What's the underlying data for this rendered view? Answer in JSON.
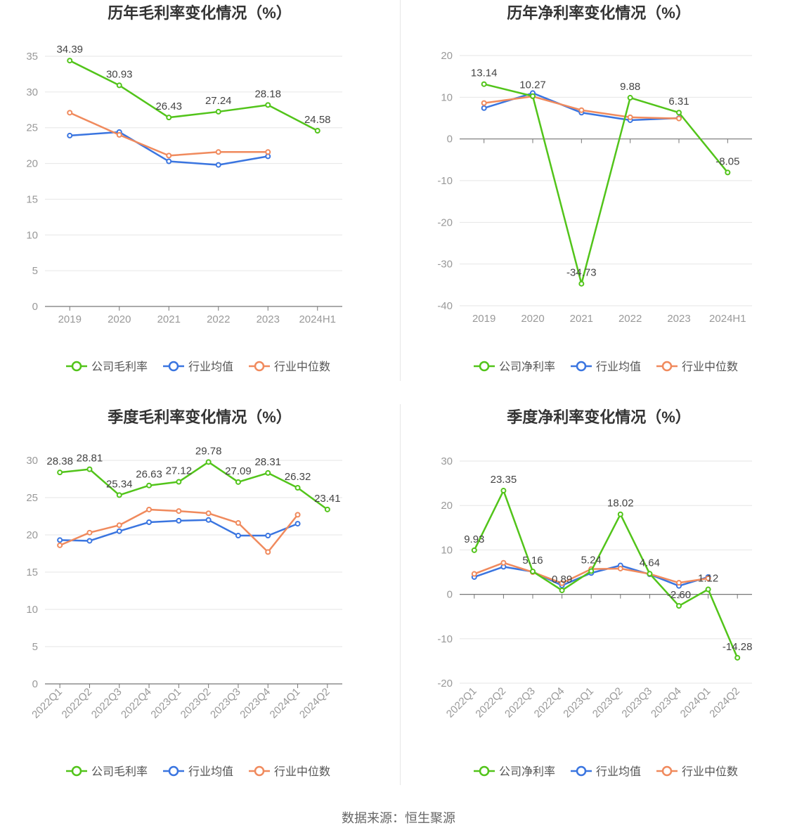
{
  "source": "数据来源：恒生聚源",
  "colors": {
    "company": "#52c41a",
    "avg": "#3a75e0",
    "median": "#f08a5d",
    "grid": "#e6e6e6",
    "axis": "#999999"
  },
  "chart_data": [
    {
      "type": "line",
      "title": "历年毛利率变化情况（%）",
      "categories": [
        "2019",
        "2020",
        "2021",
        "2022",
        "2023",
        "2024H1"
      ],
      "ylim": [
        0,
        35
      ],
      "yticks": [
        0,
        5,
        10,
        15,
        20,
        25,
        30,
        35
      ],
      "grid": true,
      "legend_position": "bottom",
      "series": [
        {
          "name": "公司毛利率",
          "role": "company",
          "values": [
            34.39,
            30.93,
            26.43,
            27.24,
            28.18,
            24.58
          ],
          "labels": [
            "34.39",
            "30.93",
            "26.43",
            "27.24",
            "28.18",
            "24.58"
          ]
        },
        {
          "name": "行业均值",
          "role": "avg",
          "values": [
            23.9,
            24.4,
            20.3,
            19.8,
            21.0,
            null
          ]
        },
        {
          "name": "行业中位数",
          "role": "median",
          "values": [
            27.1,
            24.0,
            21.1,
            21.6,
            21.6,
            null
          ]
        }
      ]
    },
    {
      "type": "line",
      "title": "历年净利率变化情况（%）",
      "categories": [
        "2019",
        "2020",
        "2021",
        "2022",
        "2023",
        "2024H1"
      ],
      "ylim": [
        -40,
        20
      ],
      "yticks": [
        -40,
        -30,
        -20,
        -10,
        0,
        10,
        20
      ],
      "grid": true,
      "legend_position": "bottom",
      "series": [
        {
          "name": "公司净利率",
          "role": "company",
          "values": [
            13.14,
            10.27,
            -34.73,
            9.88,
            6.31,
            -8.05
          ],
          "labels": [
            "13.14",
            "10.27",
            "-34.73",
            "9.88",
            "6.31",
            "-8.05"
          ]
        },
        {
          "name": "行业均值",
          "role": "avg",
          "values": [
            7.4,
            11.0,
            6.3,
            4.5,
            5.0,
            null
          ]
        },
        {
          "name": "行业中位数",
          "role": "median",
          "values": [
            8.6,
            10.2,
            6.9,
            5.2,
            4.9,
            null
          ]
        }
      ]
    },
    {
      "type": "line",
      "title": "季度毛利率变化情况（%）",
      "categories": [
        "2022Q1",
        "2022Q2",
        "2022Q3",
        "2022Q4",
        "2023Q1",
        "2023Q2",
        "2023Q3",
        "2023Q4",
        "2024Q1",
        "2024Q2"
      ],
      "ylim": [
        0,
        30
      ],
      "yticks": [
        0,
        5,
        10,
        15,
        20,
        25,
        30
      ],
      "grid": true,
      "legend_position": "bottom",
      "series": [
        {
          "name": "公司毛利率",
          "role": "company",
          "values": [
            28.38,
            28.81,
            25.34,
            26.63,
            27.12,
            29.78,
            27.09,
            28.31,
            26.32,
            23.41
          ],
          "labels": [
            "28.38",
            "28.81",
            "25.34",
            "26.63",
            "27.12",
            "29.78",
            "27.09",
            "28.31",
            "26.32",
            "23.41"
          ]
        },
        {
          "name": "行业均值",
          "role": "avg",
          "values": [
            19.3,
            19.2,
            20.5,
            21.7,
            21.9,
            22.0,
            19.9,
            19.9,
            21.5,
            null
          ]
        },
        {
          "name": "行业中位数",
          "role": "median",
          "values": [
            18.6,
            20.3,
            21.3,
            23.4,
            23.2,
            22.9,
            21.6,
            17.7,
            22.7,
            null
          ]
        }
      ]
    },
    {
      "type": "line",
      "title": "季度净利率变化情况（%）",
      "categories": [
        "2022Q1",
        "2022Q2",
        "2022Q3",
        "2022Q4",
        "2023Q1",
        "2023Q2",
        "2023Q3",
        "2023Q4",
        "2024Q1",
        "2024Q2"
      ],
      "ylim": [
        -20,
        30
      ],
      "yticks": [
        -20,
        -10,
        0,
        10,
        20,
        30
      ],
      "grid": true,
      "legend_position": "bottom",
      "series": [
        {
          "name": "公司净利率",
          "role": "company",
          "values": [
            9.93,
            23.35,
            5.16,
            0.89,
            5.24,
            18.02,
            4.64,
            -2.6,
            1.12,
            -14.28
          ],
          "labels": [
            "9.93",
            "23.35",
            "5.16",
            "0.89",
            "5.24",
            "18.02",
            "4.64",
            "-2.60",
            "1.12",
            "-14.28"
          ]
        },
        {
          "name": "行业均值",
          "role": "avg",
          "values": [
            3.9,
            6.2,
            5.1,
            2.0,
            4.8,
            6.5,
            4.5,
            1.9,
            3.9,
            null
          ]
        },
        {
          "name": "行业中位数",
          "role": "median",
          "values": [
            4.6,
            7.1,
            5.0,
            2.5,
            5.7,
            5.8,
            4.6,
            2.6,
            3.6,
            null
          ]
        }
      ]
    }
  ]
}
